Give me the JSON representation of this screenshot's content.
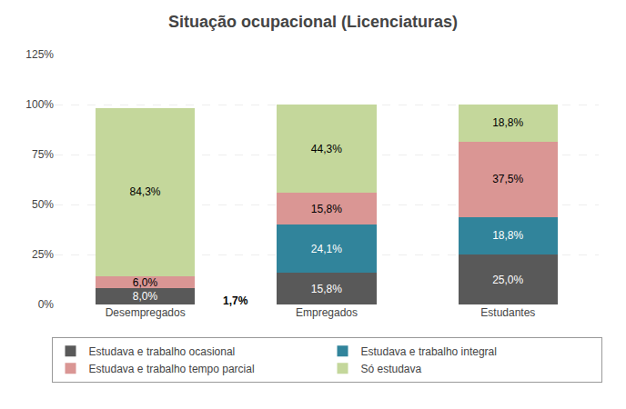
{
  "chart_data": {
    "type": "bar",
    "stacked": true,
    "title": "Situação ocupacional (Licenciaturas)",
    "categories": [
      "Desempregados",
      "Empregados",
      "Estudantes"
    ],
    "series": [
      {
        "name": "Estudava e trabalho ocasional",
        "color": "#595959",
        "values": [
          8.0,
          15.8,
          25.0
        ],
        "value_labels": [
          "8,0%",
          "15,8%",
          "25,0%"
        ]
      },
      {
        "name": "Estudava e trabalho integral",
        "color": "#31849b",
        "values": [
          0.0,
          24.1,
          18.8
        ],
        "value_labels": [
          null,
          "24,1%",
          "18,8%"
        ]
      },
      {
        "name": "Estudava e trabalho tempo parcial",
        "color": "#da9694",
        "values": [
          6.0,
          15.8,
          37.5
        ],
        "value_labels": [
          "6,0%",
          "15,8%",
          "37,5%"
        ]
      },
      {
        "name": "Só estudava",
        "color": "#c4d79b",
        "values": [
          84.3,
          44.3,
          18.8
        ],
        "value_labels": [
          "84,3%",
          "44,3%",
          "18,8%"
        ]
      }
    ],
    "annotations": [
      {
        "text": "1,7%",
        "category": "Desempregados",
        "y": 1.7
      }
    ],
    "data_labels": true,
    "ylim": [
      0,
      125
    ],
    "yticks": [
      {
        "value": 0,
        "label": "0%"
      },
      {
        "value": 25,
        "label": "25%"
      },
      {
        "value": 50,
        "label": "50%"
      },
      {
        "value": 75,
        "label": "75%"
      },
      {
        "value": 100,
        "label": "100%"
      },
      {
        "value": 125,
        "label": "125%"
      }
    ],
    "grid": true,
    "legend": "bottom"
  }
}
